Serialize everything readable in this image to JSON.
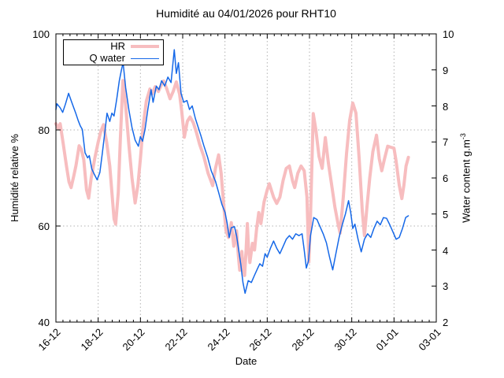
{
  "title": "Humidité au 04/01/2026 pour RHT10",
  "axes": {
    "x": {
      "label": "Date",
      "tick_labels": [
        "16-12",
        "18-12",
        "20-12",
        "22-12",
        "24-12",
        "26-12",
        "28-12",
        "30-12",
        "01-01",
        "03-01"
      ],
      "tick_days": [
        0,
        2,
        4,
        6,
        8,
        10,
        12,
        14,
        16,
        18
      ],
      "range_days": [
        0,
        18
      ],
      "minor_step_days": 0.33333
    },
    "y": {
      "label": "Humidité relative %",
      "ticks": [
        40,
        60,
        80,
        100
      ],
      "range": [
        40,
        100
      ]
    },
    "y2": {
      "label_base": "Water content g.m",
      "label_sup": "-3",
      "ticks": [
        2,
        3,
        4,
        5,
        6,
        7,
        8,
        9,
        10
      ],
      "range": [
        2,
        10
      ]
    }
  },
  "legend": {
    "items": [
      {
        "label": "HR"
      },
      {
        "label": "Q water"
      }
    ]
  },
  "colors": {
    "hr": "#f7bdbf",
    "qwater": "#1568e8",
    "grid": "#b3b3b3",
    "axis": "#000000",
    "background": "#ffffff"
  },
  "chart_data": {
    "type": "line",
    "title": "Humidité au 04/01/2026 pour RHT10",
    "xlabel": "Date",
    "ylabel": "Humidité relative %",
    "y2label": "Water content g.m-3",
    "x_unit": "days since 16-12 00:00",
    "x_tick_labels": [
      "16-12",
      "18-12",
      "20-12",
      "22-12",
      "24-12",
      "26-12",
      "28-12",
      "30-12",
      "01-01",
      "03-01"
    ],
    "grid": true,
    "legend_position": "top-left",
    "y1lim": [
      40,
      100
    ],
    "y2lim": [
      2,
      10
    ],
    "series": [
      {
        "name": "HR",
        "axis": "y1",
        "color": "#f7bdbf",
        "linewidth": 4,
        "unit": "%",
        "points": [
          [
            0,
            81.3
          ],
          [
            0.1,
            80.4
          ],
          [
            0.2,
            81.3
          ],
          [
            0.35,
            77
          ],
          [
            0.5,
            72.5
          ],
          [
            0.62,
            69.2
          ],
          [
            0.72,
            68
          ],
          [
            0.85,
            70.5
          ],
          [
            0.95,
            72.6
          ],
          [
            1.1,
            76.7
          ],
          [
            1.2,
            76
          ],
          [
            1.32,
            73.8
          ],
          [
            1.45,
            67.5
          ],
          [
            1.55,
            65.8
          ],
          [
            1.67,
            70
          ],
          [
            1.85,
            74.3
          ],
          [
            2,
            77.5
          ],
          [
            2.12,
            79.6
          ],
          [
            2.25,
            81.1
          ],
          [
            2.4,
            77.5
          ],
          [
            2.55,
            72.5
          ],
          [
            2.65,
            67
          ],
          [
            2.75,
            61.5
          ],
          [
            2.83,
            60.4
          ],
          [
            2.95,
            67
          ],
          [
            3.05,
            78
          ],
          [
            3.17,
            90.3
          ],
          [
            3.3,
            85
          ],
          [
            3.45,
            77
          ],
          [
            3.6,
            70
          ],
          [
            3.75,
            64.8
          ],
          [
            3.88,
            68.5
          ],
          [
            4,
            74
          ],
          [
            4.12,
            80.5
          ],
          [
            4.28,
            86
          ],
          [
            4.45,
            88.5
          ],
          [
            4.55,
            87.5
          ],
          [
            4.7,
            89
          ],
          [
            4.85,
            88
          ],
          [
            5,
            89.5
          ],
          [
            5.1,
            90.2
          ],
          [
            5.25,
            88.5
          ],
          [
            5.4,
            86.5
          ],
          [
            5.55,
            88
          ],
          [
            5.7,
            90
          ],
          [
            5.85,
            87.5
          ],
          [
            5.95,
            84
          ],
          [
            6.08,
            78.5
          ],
          [
            6.22,
            81.8
          ],
          [
            6.35,
            82.7
          ],
          [
            6.5,
            81.5
          ],
          [
            6.65,
            79.5
          ],
          [
            6.8,
            77
          ],
          [
            7,
            74.5
          ],
          [
            7.2,
            71
          ],
          [
            7.42,
            68.4
          ],
          [
            7.55,
            72
          ],
          [
            7.7,
            74.8
          ],
          [
            7.82,
            71
          ],
          [
            7.95,
            64
          ],
          [
            8.05,
            59
          ],
          [
            8.17,
            57.6
          ],
          [
            8.3,
            60.7
          ],
          [
            8.42,
            55.8
          ],
          [
            8.55,
            59
          ],
          [
            8.63,
            54
          ],
          [
            8.7,
            50.8
          ],
          [
            8.8,
            54.7
          ],
          [
            8.87,
            51
          ],
          [
            8.93,
            49.7
          ],
          [
            9,
            55
          ],
          [
            9.06,
            60.5
          ],
          [
            9.12,
            55
          ],
          [
            9.18,
            52.4
          ],
          [
            9.3,
            56.4
          ],
          [
            9.4,
            55
          ],
          [
            9.5,
            59.5
          ],
          [
            9.6,
            62.8
          ],
          [
            9.7,
            60.5
          ],
          [
            9.85,
            65
          ],
          [
            10,
            67.5
          ],
          [
            10.1,
            68.8
          ],
          [
            10.3,
            66
          ],
          [
            10.45,
            64.7
          ],
          [
            10.6,
            66
          ],
          [
            10.75,
            69.5
          ],
          [
            10.9,
            72
          ],
          [
            11.05,
            72.5
          ],
          [
            11.2,
            69.4
          ],
          [
            11.3,
            68
          ],
          [
            11.45,
            71
          ],
          [
            11.6,
            72.5
          ],
          [
            11.75,
            71.5
          ],
          [
            11.88,
            66
          ],
          [
            11.97,
            52.5
          ],
          [
            12.05,
            62
          ],
          [
            12.18,
            83.4
          ],
          [
            12.3,
            80
          ],
          [
            12.45,
            74.5
          ],
          [
            12.6,
            72
          ],
          [
            12.75,
            78.4
          ],
          [
            12.9,
            73
          ],
          [
            13.05,
            68.5
          ],
          [
            13.2,
            64
          ],
          [
            13.35,
            60.5
          ],
          [
            13.45,
            58.5
          ],
          [
            13.6,
            66
          ],
          [
            13.75,
            75
          ],
          [
            13.9,
            82
          ],
          [
            14.05,
            85.6
          ],
          [
            14.2,
            83.5
          ],
          [
            14.35,
            74
          ],
          [
            14.5,
            63
          ],
          [
            14.6,
            58
          ],
          [
            14.72,
            64
          ],
          [
            14.85,
            70
          ],
          [
            15,
            75.5
          ],
          [
            15.17,
            78.9
          ],
          [
            15.3,
            74
          ],
          [
            15.42,
            71.5
          ],
          [
            15.55,
            74
          ],
          [
            15.7,
            76.6
          ],
          [
            15.85,
            76.4
          ],
          [
            16,
            76.2
          ],
          [
            16.1,
            73.5
          ],
          [
            16.25,
            68.5
          ],
          [
            16.37,
            65.7
          ],
          [
            16.47,
            68.5
          ],
          [
            16.57,
            72.5
          ],
          [
            16.68,
            74.3
          ]
        ]
      },
      {
        "name": "Q water",
        "axis": "y2",
        "color": "#1568e8",
        "linewidth": 1.5,
        "unit": "g.m-3",
        "points": [
          [
            0,
            7.9
          ],
          [
            0.05,
            8.06
          ],
          [
            0.2,
            7.95
          ],
          [
            0.32,
            7.82
          ],
          [
            0.45,
            8.05
          ],
          [
            0.6,
            8.35
          ],
          [
            0.75,
            8.1
          ],
          [
            0.93,
            7.81
          ],
          [
            1.05,
            7.6
          ],
          [
            1.15,
            7.45
          ],
          [
            1.25,
            7.35
          ],
          [
            1.38,
            6.7
          ],
          [
            1.5,
            6.56
          ],
          [
            1.58,
            6.62
          ],
          [
            1.7,
            6.25
          ],
          [
            1.82,
            6.1
          ],
          [
            1.95,
            5.95
          ],
          [
            2.08,
            6.15
          ],
          [
            2.2,
            6.7
          ],
          [
            2.32,
            7.3
          ],
          [
            2.42,
            7.8
          ],
          [
            2.55,
            7.57
          ],
          [
            2.65,
            7.8
          ],
          [
            2.75,
            7.72
          ],
          [
            2.88,
            8.2
          ],
          [
            3,
            8.7
          ],
          [
            3.1,
            9
          ],
          [
            3.18,
            9.2
          ],
          [
            3.3,
            8.5
          ],
          [
            3.45,
            7.9
          ],
          [
            3.6,
            7.4
          ],
          [
            3.75,
            7.05
          ],
          [
            3.9,
            6.88
          ],
          [
            4,
            7.15
          ],
          [
            4.1,
            7.02
          ],
          [
            4.22,
            7.35
          ],
          [
            4.35,
            7.9
          ],
          [
            4.5,
            8.45
          ],
          [
            4.6,
            8.1
          ],
          [
            4.75,
            8.55
          ],
          [
            4.88,
            8.45
          ],
          [
            5,
            8.7
          ],
          [
            5.15,
            8.55
          ],
          [
            5.3,
            8.8
          ],
          [
            5.45,
            8.65
          ],
          [
            5.6,
            9.56
          ],
          [
            5.7,
            8.9
          ],
          [
            5.8,
            9.2
          ],
          [
            5.92,
            8.35
          ],
          [
            6.05,
            8.1
          ],
          [
            6.2,
            8.15
          ],
          [
            6.32,
            7.9
          ],
          [
            6.45,
            8
          ],
          [
            6.6,
            7.65
          ],
          [
            6.87,
            7.16
          ],
          [
            7,
            6.9
          ],
          [
            7.18,
            6.57
          ],
          [
            7.35,
            6.2
          ],
          [
            7.55,
            5.91
          ],
          [
            7.7,
            5.6
          ],
          [
            7.86,
            5.26
          ],
          [
            8,
            5.05
          ],
          [
            8.1,
            4.75
          ],
          [
            8.2,
            4.35
          ],
          [
            8.3,
            4.62
          ],
          [
            8.45,
            4.65
          ],
          [
            8.55,
            4.4
          ],
          [
            8.65,
            4
          ],
          [
            8.75,
            3.6
          ],
          [
            8.85,
            3.1
          ],
          [
            8.95,
            2.8
          ],
          [
            9.1,
            3.15
          ],
          [
            9.25,
            3.1
          ],
          [
            9.4,
            3.3
          ],
          [
            9.55,
            3.5
          ],
          [
            9.65,
            3.62
          ],
          [
            9.78,
            3.55
          ],
          [
            9.9,
            3.9
          ],
          [
            10,
            3.8
          ],
          [
            10.15,
            4.05
          ],
          [
            10.3,
            4.25
          ],
          [
            10.45,
            4.05
          ],
          [
            10.6,
            3.9
          ],
          [
            10.75,
            4.1
          ],
          [
            10.9,
            4.3
          ],
          [
            11.05,
            4.4
          ],
          [
            11.2,
            4.3
          ],
          [
            11.35,
            4.45
          ],
          [
            11.5,
            4.4
          ],
          [
            11.65,
            4.45
          ],
          [
            11.75,
            4
          ],
          [
            11.85,
            3.5
          ],
          [
            11.95,
            3.7
          ],
          [
            12.05,
            4.4
          ],
          [
            12.2,
            4.9
          ],
          [
            12.35,
            4.85
          ],
          [
            12.5,
            4.65
          ],
          [
            12.65,
            4.45
          ],
          [
            12.8,
            4.2
          ],
          [
            12.95,
            3.8
          ],
          [
            13.1,
            3.45
          ],
          [
            13.25,
            3.9
          ],
          [
            13.4,
            4.35
          ],
          [
            13.55,
            4.7
          ],
          [
            13.7,
            5
          ],
          [
            13.85,
            5.37
          ],
          [
            13.95,
            5.05
          ],
          [
            14.05,
            4.6
          ],
          [
            14.15,
            4.72
          ],
          [
            14.3,
            4.3
          ],
          [
            14.45,
            3.95
          ],
          [
            14.6,
            4.3
          ],
          [
            14.75,
            4.45
          ],
          [
            14.9,
            4.35
          ],
          [
            15.05,
            4.6
          ],
          [
            15.2,
            4.8
          ],
          [
            15.35,
            4.7
          ],
          [
            15.5,
            4.9
          ],
          [
            15.65,
            4.88
          ],
          [
            15.8,
            4.7
          ],
          [
            15.95,
            4.5
          ],
          [
            16.1,
            4.3
          ],
          [
            16.25,
            4.35
          ],
          [
            16.4,
            4.6
          ],
          [
            16.55,
            4.9
          ],
          [
            16.68,
            4.95
          ]
        ]
      }
    ]
  }
}
